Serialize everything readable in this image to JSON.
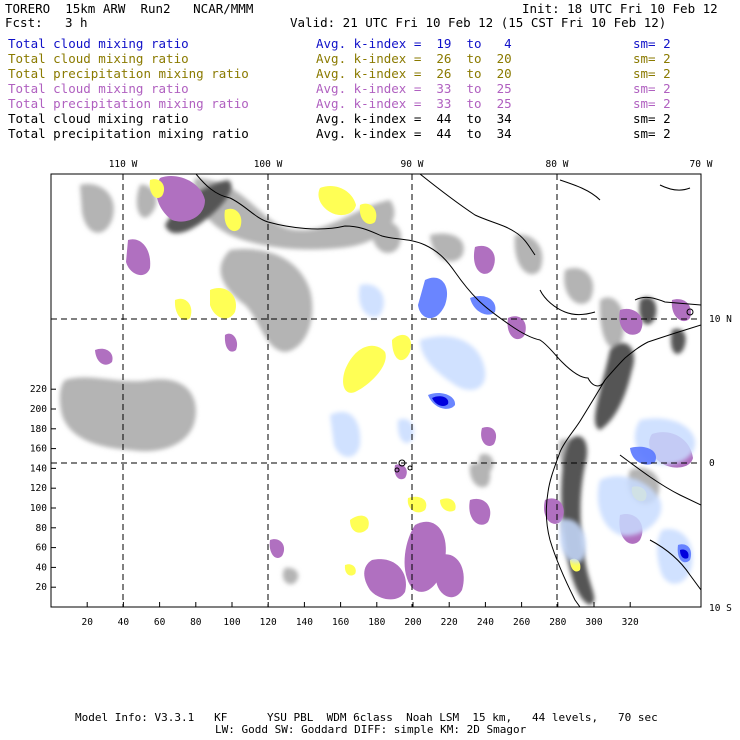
{
  "header": {
    "title_left": "TORERO  15km ARW  Run2   NCAR/MMM",
    "init": "Init: 18 UTC Fri 10 Feb 12",
    "fcst_label": "Fcst:",
    "fcst_value": "3 h",
    "valid": "Valid: 21 UTC Fri 10 Feb 12 (15 CST Fri 10 Feb 12)"
  },
  "fields": [
    {
      "name": "Total cloud mixing ratio",
      "avg": "Avg. k-index =  19  to   4",
      "sm": "sm= 2",
      "color": "#1010c8"
    },
    {
      "name": "Total cloud mixing ratio",
      "avg": "Avg. k-index =  26  to  20",
      "sm": "sm= 2",
      "color": "#8a7a00"
    },
    {
      "name": "Total precipitation mixing ratio",
      "avg": "Avg. k-index =  26  to  20",
      "sm": "sm= 2",
      "color": "#8a7a00"
    },
    {
      "name": "Total cloud mixing ratio",
      "avg": "Avg. k-index =  33  to  25",
      "sm": "sm= 2",
      "color": "#b060c0"
    },
    {
      "name": "Total precipitation mixing ratio",
      "avg": "Avg. k-index =  33  to  25",
      "sm": "sm= 2",
      "color": "#b060c0"
    },
    {
      "name": "Total cloud mixing ratio",
      "avg": "Avg. k-index =  44  to  34",
      "sm": "sm= 2",
      "color": "#000000"
    },
    {
      "name": "Total precipitation mixing ratio",
      "avg": "Avg. k-index =  44  to  34",
      "sm": "sm= 2",
      "color": "#000000"
    }
  ],
  "map": {
    "lon_labels": [
      "110 W",
      "100 W",
      "90 W",
      "80 W",
      "70 W"
    ],
    "lat_labels": [
      "10 N",
      "0",
      "10 S"
    ],
    "y_ticks": [
      "220",
      "200",
      "180",
      "160",
      "140",
      "120",
      "100",
      "80",
      "60",
      "40",
      "20"
    ],
    "x_ticks": [
      "20",
      "40",
      "60",
      "80",
      "100",
      "120",
      "140",
      "160",
      "180",
      "200",
      "220",
      "240",
      "260",
      "280",
      "300",
      "320"
    ]
  },
  "footer": {
    "line1": "Model Info: V3.3.1   KF      YSU PBL  WDM 6class  Noah LSM  15 km,   44 levels,   70 sec",
    "line2": "LW: Godd SW: Goddard DIFF: simple KM: 2D Smagor"
  }
}
